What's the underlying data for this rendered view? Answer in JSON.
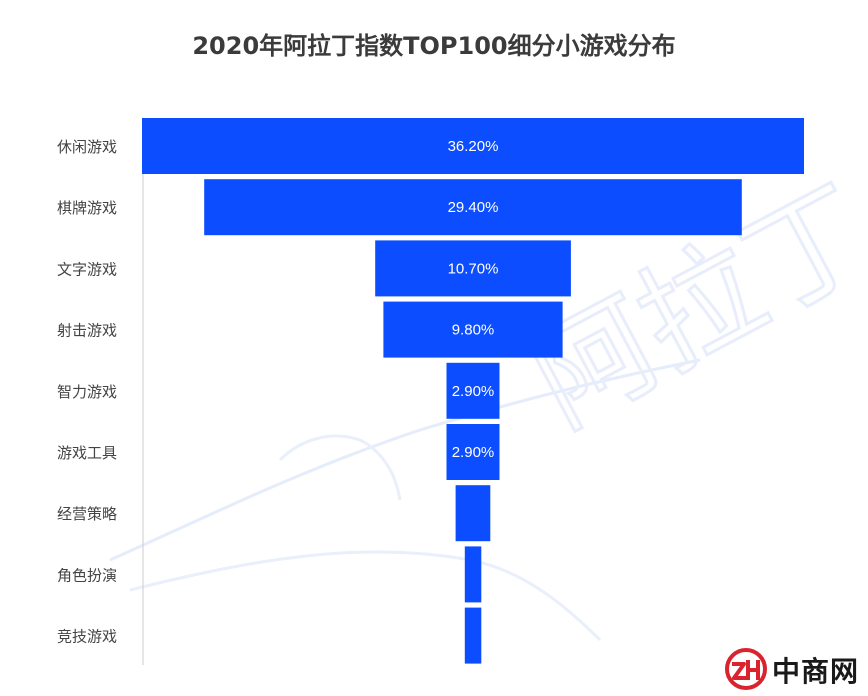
{
  "chart_data": {
    "type": "funnel",
    "title": "2020年阿拉丁指数TOP100细分小游戏分布",
    "categories": [
      "休闲游戏",
      "棋牌游戏",
      "文字游戏",
      "射击游戏",
      "智力游戏",
      "游戏工具",
      "经营策略",
      "角色扮演",
      "竞技游戏"
    ],
    "values": [
      36.2,
      29.4,
      10.7,
      9.8,
      2.9,
      2.9,
      1.9,
      0.9,
      0.9
    ],
    "labels": [
      "36.20%",
      "29.40%",
      "10.70%",
      "9.80%",
      "2.90%",
      "2.90%",
      "",
      "",
      ""
    ],
    "color": "#0b4dff",
    "grid": false,
    "legend": "none"
  },
  "watermark": {
    "text": "阿拉丁"
  },
  "logo": {
    "mark": "ZH",
    "text": "中商网",
    "color": "#d9232e"
  }
}
